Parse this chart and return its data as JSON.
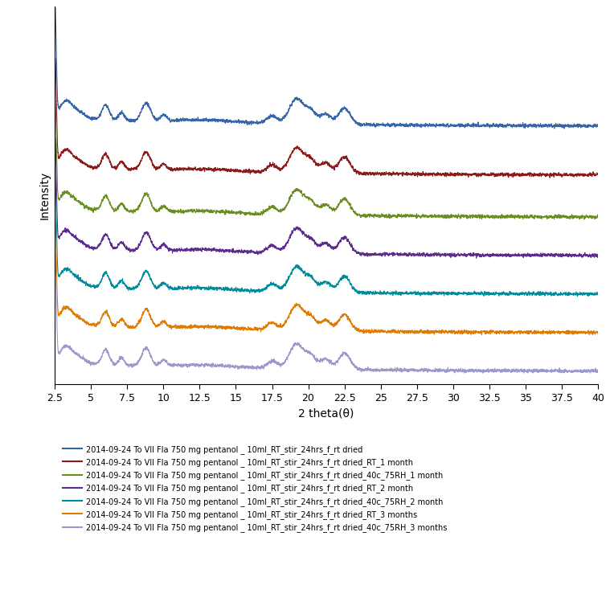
{
  "x_min": 2.5,
  "x_max": 40.0,
  "xlabel": "2 theta(θ)",
  "ylabel": "Intensity",
  "xticks": [
    2.5,
    5,
    7.5,
    10,
    12.5,
    15,
    17.5,
    20,
    22.5,
    25,
    27.5,
    30,
    32.5,
    35,
    37.5,
    40
  ],
  "colors": [
    "#3565A8",
    "#8B1A1A",
    "#6B8E23",
    "#5B2C8D",
    "#008B9A",
    "#E07B00",
    "#9999CC"
  ],
  "offsets": [
    7.0,
    5.6,
    4.4,
    3.3,
    2.2,
    1.1,
    0.0
  ],
  "noise_scale": 0.035,
  "peak_scale": 0.85,
  "legend_labels": [
    "2014-09-24 To VII Fla 750 mg pentanol _ 10ml_RT_stir_24hrs_f_rt dried",
    "2014-09-24 To VII Fla 750 mg pentanol _ 10ml_RT_stir_24hrs_f_rt dried_RT_1 month",
    "2014-09-24 To VII Fla 750 mg pentanol _ 10ml_RT_stir_24hrs_f_rt dried_40c_75RH_1 month",
    "2014-09-24 To VII Fla 750 mg pentanol _ 10ml_RT_stir_24hrs_f_rt dried_RT_2 month",
    "2014-09-24 To VII Fla 750 mg pentanol _ 10ml_RT_stir_24hrs_f_rt dried_40c_75RH_2 month",
    "2014-09-24 To VII Fla 750 mg pentanol _ 10ml_RT_stir_24hrs_f_rt dried_RT_3 months",
    "2014-09-24 To VII Fla 750 mg pentanol _ 10ml_RT_stir_24hrs_f_rt dried_40c_75RH_3 months"
  ]
}
